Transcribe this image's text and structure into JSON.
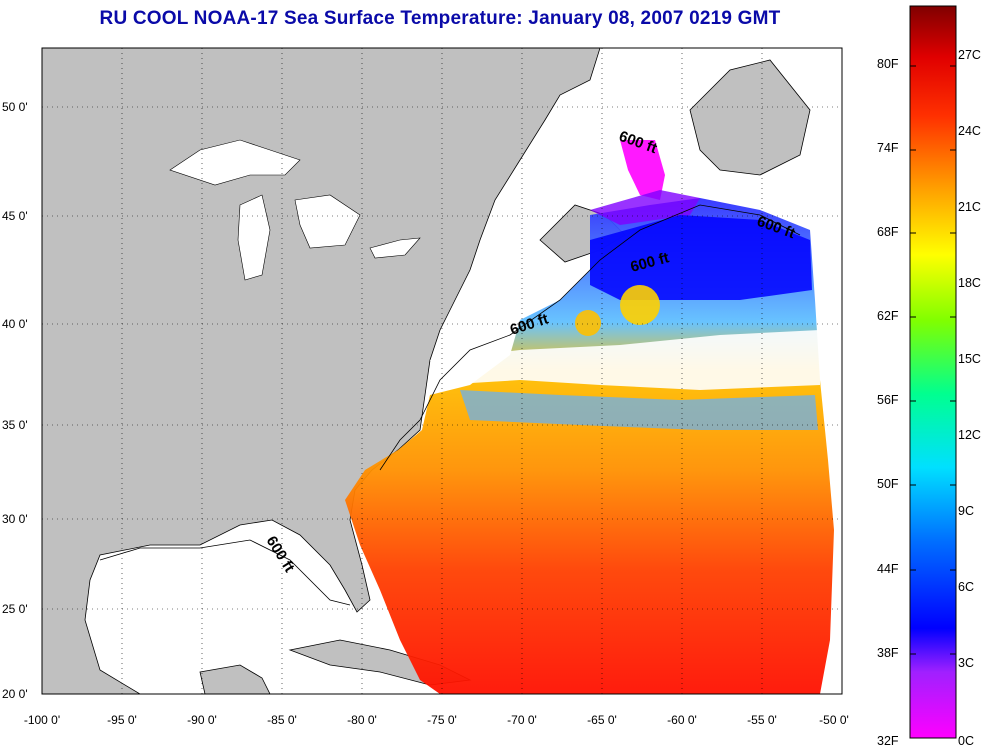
{
  "title": "RU COOL  NOAA-17  Sea Surface Temperature:  January 08, 2007 0219 GMT",
  "map": {
    "lat_labels": [
      "50 0'",
      "45 0'",
      "40 0'",
      "35 0'",
      "30 0'",
      "25 0'",
      "20 0'"
    ],
    "lon_labels": [
      "-100 0'",
      "-95 0'",
      "-90 0'",
      "-85 0'",
      "-80 0'",
      "-75 0'",
      "-70 0'",
      "-65 0'",
      "-60 0'",
      "-55 0'",
      "-50 0'"
    ],
    "contour_label": "600 ft",
    "colors": {
      "land": "#c0c0c0",
      "no_data": "#ffffff",
      "coast": "#000000"
    }
  },
  "colorbar": {
    "fahrenheit_labels": [
      "80F",
      "74F",
      "68F",
      "62F",
      "56F",
      "50F",
      "44F",
      "38F",
      "32F"
    ],
    "celsius_labels": [
      "27C",
      "24C",
      "21C",
      "18C",
      "15C",
      "12C",
      "9C",
      "6C",
      "3C",
      "0C"
    ],
    "range_c": [
      0,
      29
    ],
    "stops": [
      "#ff00ff",
      "#8000ff",
      "#0000ff",
      "#0080ff",
      "#00ffff",
      "#00ff80",
      "#80ff00",
      "#ffff00",
      "#ffa000",
      "#ff4000",
      "#e00000",
      "#800000"
    ]
  }
}
